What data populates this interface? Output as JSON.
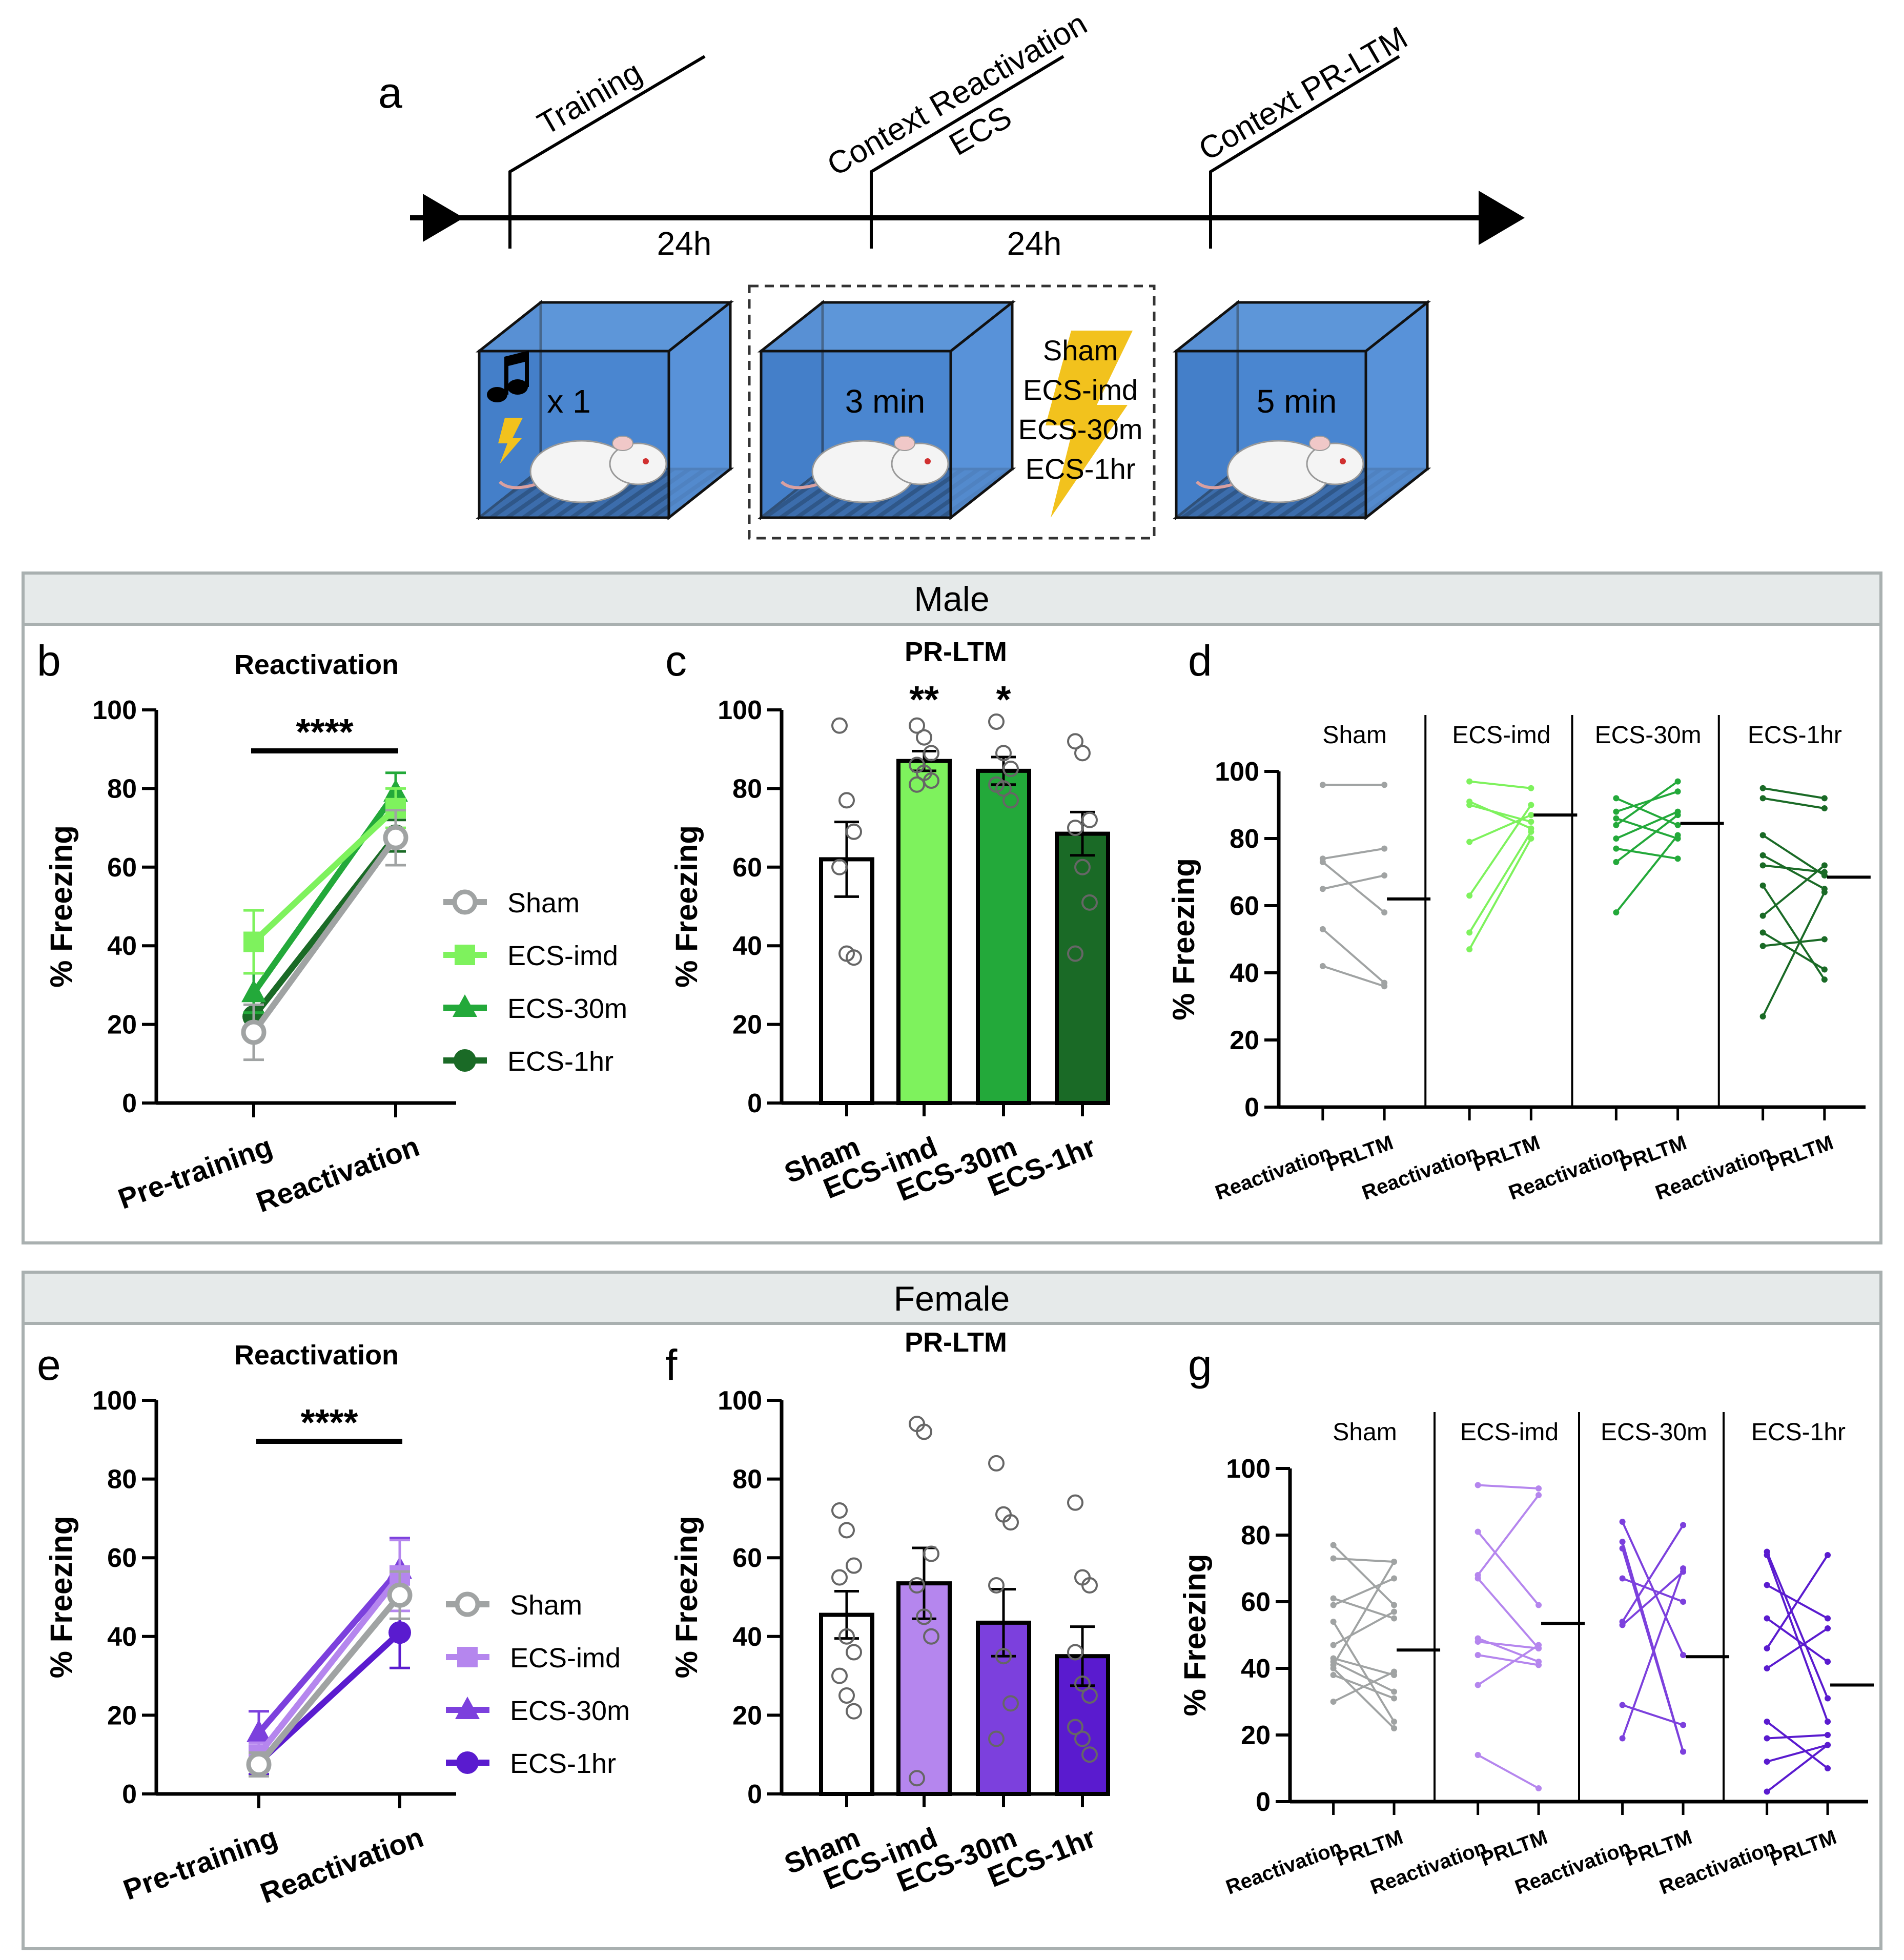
{
  "panel_letters": {
    "a": "a",
    "b": "b",
    "c": "c",
    "d": "d",
    "e": "e",
    "f": "f",
    "g": "g"
  },
  "timeline": {
    "events": [
      "Training",
      "Context Reactivation",
      "ECS",
      "Context PR-LTM"
    ],
    "intervals": [
      "24h",
      "24h"
    ],
    "box_labels": [
      "x 1",
      "3 min",
      "5 min"
    ],
    "conditions": [
      "Sham",
      "ECS-imd",
      "ECS-30m",
      "ECS-1hr"
    ]
  },
  "sections": {
    "male": "Male",
    "female": "Female"
  },
  "colors": {
    "sham": "#a0a3a3",
    "male": [
      "#a0a3a3",
      "#7ef25d",
      "#23a93a",
      "#1a6a26"
    ],
    "female": [
      "#a0a3a3",
      "#b586ee",
      "#7c40dd",
      "#5a1bcf"
    ],
    "box": "#4a86d0",
    "bolt": "#f2c21d",
    "panel_border": "#a9b0b0",
    "header_fill": "#e6eaea"
  },
  "chart_data": [
    {
      "panel": "b",
      "type": "line",
      "title": "Reactivation",
      "ylabel": "% Freezing",
      "ylim": [
        0,
        100
      ],
      "yticks": [
        "0",
        "20",
        "40",
        "60",
        "80",
        "100"
      ],
      "categories": [
        "Pre-training",
        "Reactivation"
      ],
      "significance": "****",
      "series": [
        {
          "name": "Sham",
          "values": [
            18,
            67.5
          ],
          "err": [
            7,
            7
          ]
        },
        {
          "name": "ECS-imd",
          "values": [
            41,
            75
          ],
          "err": [
            8,
            5
          ]
        },
        {
          "name": "ECS-30m",
          "values": [
            28,
            79
          ],
          "err": [
            5,
            5
          ]
        },
        {
          "name": "ECS-1hr",
          "values": [
            22,
            68
          ],
          "err": [
            4,
            4
          ]
        }
      ]
    },
    {
      "panel": "c",
      "type": "bar",
      "title": "PR-LTM",
      "ylabel": "% Freezing",
      "ylim": [
        0,
        100
      ],
      "yticks": [
        "0",
        "20",
        "40",
        "60",
        "80",
        "100"
      ],
      "categories": [
        "Sham",
        "ECS-imd",
        "ECS-30m",
        "ECS-1hr"
      ],
      "values": [
        62,
        87,
        84.5,
        68.5
      ],
      "err": [
        9.5,
        2.5,
        3.5,
        5.5
      ],
      "significance": [
        "",
        "**",
        "*",
        ""
      ],
      "points": [
        [
          96,
          77,
          69,
          60,
          38,
          37
        ],
        [
          96,
          93,
          89,
          86,
          84,
          82,
          81
        ],
        [
          97,
          89,
          85,
          81,
          80,
          77
        ],
        [
          92,
          89,
          72,
          70,
          60,
          51,
          38
        ]
      ]
    },
    {
      "panel": "d",
      "type": "line",
      "ylabel": "% Freezing",
      "ylim": [
        0,
        100
      ],
      "yticks": [
        "0",
        "20",
        "40",
        "60",
        "80",
        "100"
      ],
      "groups": [
        "Sham",
        "ECS-imd",
        "ECS-30m",
        "ECS-1hr"
      ],
      "xlabels": [
        "Reactivation",
        "PRLTM"
      ],
      "means": [
        62,
        87,
        84.5,
        68.5
      ],
      "pairs": [
        [
          [
            96,
            96
          ],
          [
            73,
            58
          ],
          [
            74,
            77
          ],
          [
            65,
            69
          ],
          [
            53,
            37
          ],
          [
            42,
            36
          ]
        ],
        [
          [
            97,
            95
          ],
          [
            91,
            83
          ],
          [
            90,
            85
          ],
          [
            79,
            87
          ],
          [
            63,
            90
          ],
          [
            52,
            82
          ],
          [
            47,
            80
          ]
        ],
        [
          [
            92,
            84
          ],
          [
            88,
            94
          ],
          [
            86,
            80
          ],
          [
            84,
            97
          ],
          [
            80,
            88
          ],
          [
            77,
            74
          ],
          [
            73,
            87
          ],
          [
            58,
            81
          ]
        ],
        [
          [
            95,
            92
          ],
          [
            92,
            89
          ],
          [
            81,
            69
          ],
          [
            75,
            65
          ],
          [
            72,
            70
          ],
          [
            66,
            38
          ],
          [
            57,
            72
          ],
          [
            52,
            41
          ],
          [
            48,
            50
          ],
          [
            27,
            64
          ]
        ]
      ]
    },
    {
      "panel": "e",
      "type": "line",
      "title": "Reactivation",
      "ylabel": "% Freezing",
      "ylim": [
        0,
        100
      ],
      "yticks": [
        "0",
        "20",
        "40",
        "60",
        "80",
        "100"
      ],
      "categories": [
        "Pre-training",
        "Reactivation"
      ],
      "significance": "****",
      "series": [
        {
          "name": "Sham",
          "values": [
            7.5,
            50.5
          ],
          "err": [
            3,
            6
          ]
        },
        {
          "name": "ECS-imd",
          "values": [
            10,
            55.5
          ],
          "err": [
            3,
            9
          ]
        },
        {
          "name": "ECS-30m",
          "values": [
            15.5,
            57
          ],
          "err": [
            5.5,
            8
          ]
        },
        {
          "name": "ECS-1hr",
          "values": [
            8,
            41
          ],
          "err": [
            3,
            9
          ]
        }
      ]
    },
    {
      "panel": "f",
      "type": "bar",
      "title": "PR-LTM",
      "ylabel": "% Freezing",
      "ylim": [
        0,
        100
      ],
      "yticks": [
        "0",
        "20",
        "40",
        "60",
        "80",
        "100"
      ],
      "categories": [
        "Sham",
        "ECS-imd",
        "ECS-30m",
        "ECS-1hr"
      ],
      "values": [
        45.5,
        53.5,
        43.5,
        35
      ],
      "err": [
        6,
        9,
        8.5,
        7.5
      ],
      "points": [
        [
          72,
          67,
          58,
          55,
          40,
          36,
          30,
          25,
          21
        ],
        [
          94,
          92,
          61,
          53,
          45,
          40,
          4
        ],
        [
          84,
          71,
          69,
          53,
          35,
          23,
          14
        ],
        [
          74,
          55,
          53,
          36,
          28,
          25,
          17,
          14,
          10
        ]
      ]
    },
    {
      "panel": "g",
      "type": "line",
      "ylabel": "% Freezing",
      "ylim": [
        0,
        100
      ],
      "yticks": [
        "0",
        "20",
        "40",
        "60",
        "80",
        "100"
      ],
      "groups": [
        "Sham",
        "ECS-imd",
        "ECS-30m",
        "ECS-1hr"
      ],
      "xlabels": [
        "Reactivation",
        "PRLTM"
      ],
      "means": [
        45.5,
        53.5,
        43.5,
        35
      ],
      "pairs": [
        [
          [
            77,
            59
          ],
          [
            73,
            72
          ],
          [
            61,
            55
          ],
          [
            59,
            67
          ],
          [
            54,
            24
          ],
          [
            43,
            38
          ],
          [
            42,
            33
          ],
          [
            41,
            72
          ],
          [
            40,
            22
          ],
          [
            38,
            31
          ],
          [
            30,
            39
          ],
          [
            47,
            57
          ]
        ],
        [
          [
            95,
            94
          ],
          [
            81,
            59
          ],
          [
            68,
            92
          ],
          [
            67,
            46
          ],
          [
            49,
            42
          ],
          [
            48,
            46
          ],
          [
            44,
            41
          ],
          [
            35,
            47
          ],
          [
            14,
            4
          ]
        ],
        [
          [
            84,
            44
          ],
          [
            78,
            15
          ],
          [
            76,
            15
          ],
          [
            67,
            60
          ],
          [
            54,
            83
          ],
          [
            29,
            23
          ],
          [
            19,
            70
          ],
          [
            53,
            69
          ]
        ],
        [
          [
            75,
            31
          ],
          [
            74,
            24
          ],
          [
            65,
            55
          ],
          [
            55,
            42
          ],
          [
            46,
            74
          ],
          [
            40,
            52
          ],
          [
            24,
            10
          ],
          [
            19,
            20
          ],
          [
            12,
            17
          ],
          [
            3,
            17
          ]
        ]
      ]
    }
  ]
}
